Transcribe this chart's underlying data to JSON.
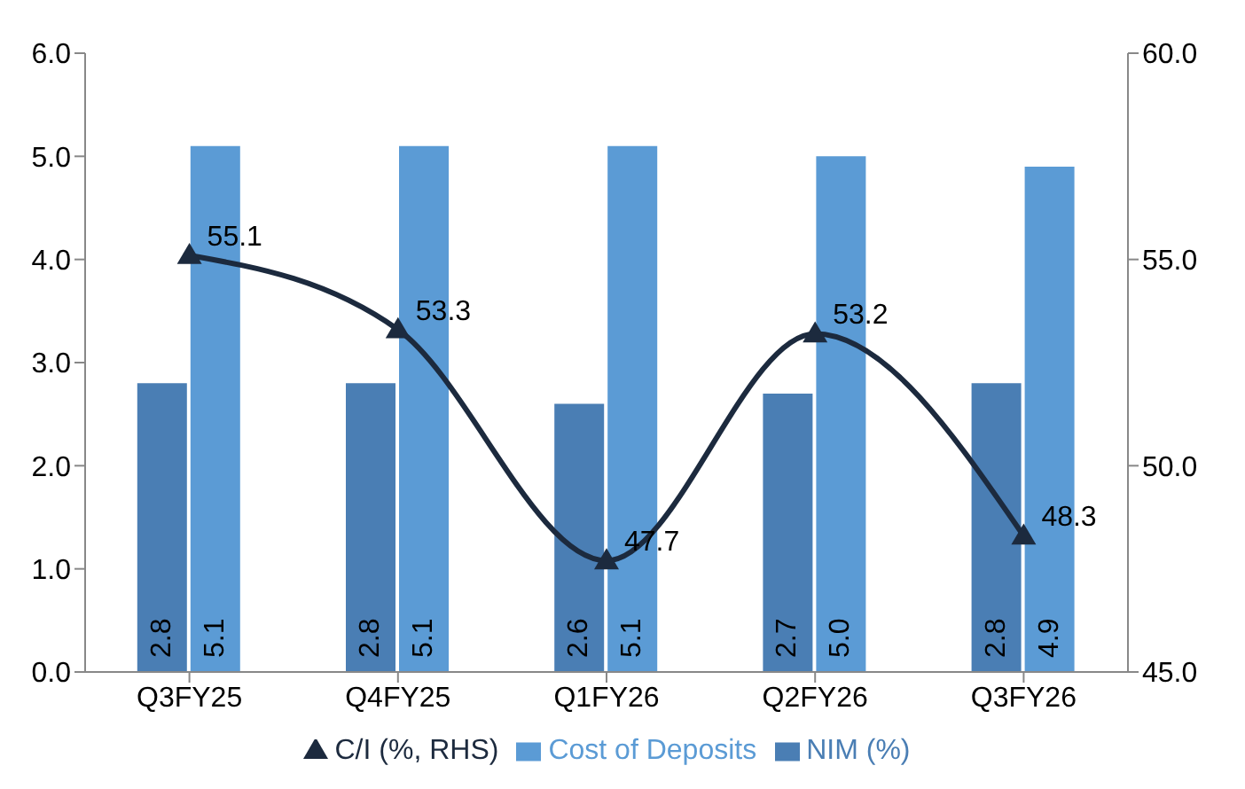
{
  "chart_data": {
    "type": "bar",
    "categories": [
      "Q3FY25",
      "Q4FY25",
      "Q1FY26",
      "Q2FY26",
      "Q3FY26"
    ],
    "series": [
      {
        "name": "NIM (%)",
        "color": "#4a7eb4",
        "values": [
          2.8,
          2.8,
          2.6,
          2.7,
          2.8
        ],
        "value_labels": [
          "2.8",
          "2.8",
          "2.6",
          "2.7",
          "2.8"
        ]
      },
      {
        "name": "Cost of Deposits",
        "color": "#5b9bd5",
        "values": [
          5.1,
          5.1,
          5.1,
          5.0,
          4.9
        ],
        "value_labels": [
          "5.1",
          "5.1",
          "5.1",
          "5.0",
          "4.9"
        ]
      },
      {
        "name": "C/I (%, RHS)",
        "type": "line",
        "axis": "y2",
        "color": "#1c2a3e",
        "values": [
          55.1,
          53.3,
          47.7,
          53.2,
          48.3
        ],
        "value_labels": [
          "55.1",
          "53.3",
          "47.7",
          "53.2",
          "48.3"
        ]
      }
    ],
    "ylim": [
      0,
      6
    ],
    "yticks": [
      {
        "value": 0,
        "label": "0.0"
      },
      {
        "value": 1,
        "label": "1.0"
      },
      {
        "value": 2,
        "label": "2.0"
      },
      {
        "value": 3,
        "label": "3.0"
      },
      {
        "value": 4,
        "label": "4.0"
      },
      {
        "value": 5,
        "label": "5.0"
      },
      {
        "value": 6,
        "label": "6.0"
      }
    ],
    "y2lim": [
      45,
      60
    ],
    "y2ticks": [
      {
        "value": 45,
        "label": "45.0"
      },
      {
        "value": 50,
        "label": "50.0"
      },
      {
        "value": 55,
        "label": "55.0"
      },
      {
        "value": 60,
        "label": "60.0"
      }
    ],
    "legend": "bottom",
    "grid": false,
    "marker": "triangle",
    "line_style": "solid"
  }
}
